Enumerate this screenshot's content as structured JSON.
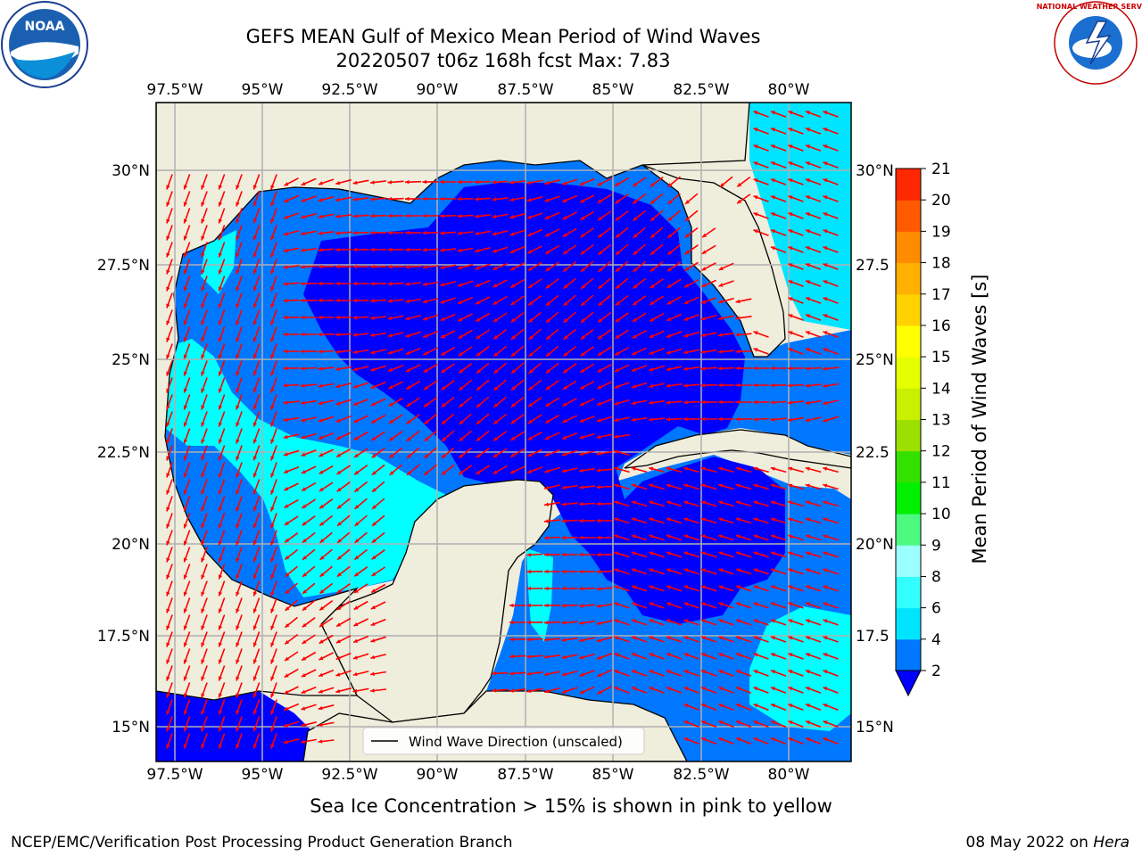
{
  "header": {
    "title_line1": "GEFS MEAN Gulf of Mexico Mean Period of Wind Waves",
    "title_line2": "20220507 t06z 168h fcst   Max: 7.83"
  },
  "logos": {
    "left": "NOAA",
    "right": "NATIONAL WEATHER SERVICE"
  },
  "map": {
    "lon_labels": [
      "97.5°W",
      "95°W",
      "92.5°W",
      "90°W",
      "87.5°W",
      "85°W",
      "82.5°W",
      "80°W"
    ],
    "lat_labels_left": [
      "30°N",
      "27.5°N",
      "25°N",
      "22.5°N",
      "20°N",
      "17.5°N",
      "15°N"
    ],
    "lat_labels_right": [
      "30°N",
      "27.5",
      "25°N",
      "22.5",
      "20°N",
      "17.5",
      "15°N"
    ],
    "legend_label": "Wind Wave Direction (unscaled)",
    "colors": {
      "land": "#efeddc",
      "water_le4": "#007dff",
      "water_le2": "#0000ff",
      "water_4_6": "#00ffff",
      "arrow": "#ff0000"
    }
  },
  "colorbar": {
    "title": "Mean Period of Wind Waves [s]",
    "ticks": [
      "2",
      "4",
      "6",
      "8",
      "9",
      "10",
      "11",
      "12",
      "13",
      "14",
      "15",
      "16",
      "17",
      "18",
      "19",
      "20",
      "21"
    ],
    "colors": [
      "#0077ff",
      "#00e5ff",
      "#33ffff",
      "#9cffff",
      "#4cfa80",
      "#00f000",
      "#33e000",
      "#9be000",
      "#c8f000",
      "#e6ff00",
      "#ffff00",
      "#ffd200",
      "#ffb000",
      "#ff8c00",
      "#ff5a00",
      "#ff2800",
      "#ff0000"
    ],
    "extend_color": "#0000ff"
  },
  "footer": {
    "note": "Sea Ice Concentration > 15% is shown in pink to yellow",
    "credit": "NCEP/EMC/Verification Post Processing Product Generation Branch",
    "date": "08 May 2022 on",
    "machine": "Hera"
  }
}
